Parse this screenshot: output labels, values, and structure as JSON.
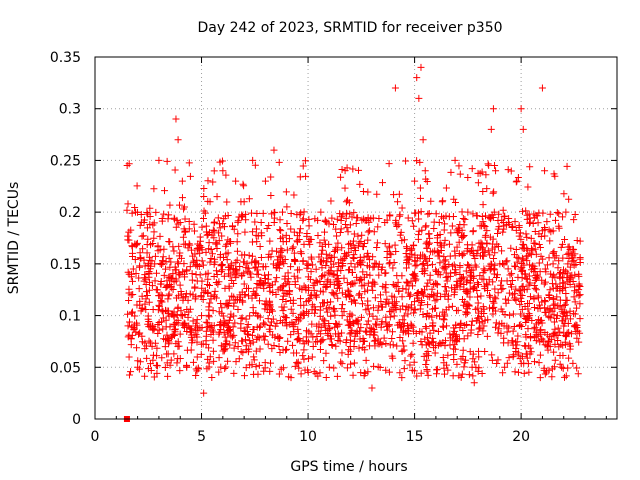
{
  "chart_data": {
    "type": "scatter",
    "title": "Day 242 of 2023, SRMTID for receiver p350",
    "xlabel": "GPS time / hours",
    "ylabel": "SRMTID / TECUs",
    "xlim": [
      0,
      24.5
    ],
    "ylim": [
      0,
      0.35
    ],
    "x_ticks": [
      0,
      5,
      10,
      15,
      20
    ],
    "x_tick_labels": [
      "0",
      "5",
      "10",
      "15",
      "20"
    ],
    "y_ticks": [
      0,
      0.05,
      0.1,
      0.15,
      0.2,
      0.25,
      0.3,
      0.35
    ],
    "y_tick_labels": [
      "0",
      "0.05",
      "0.1",
      "0.15",
      "0.2",
      "0.25",
      "0.3",
      "0.35"
    ],
    "grid": true,
    "marker": "plus",
    "marker_color": "#ff0000",
    "data_extent": {
      "x_start": 1.5,
      "x_end": 22.8
    },
    "square_marker": {
      "x": 1.5,
      "y": 0.0
    },
    "series": [
      {
        "name": "SRMTID",
        "points": [
          [
            1.55,
            0.09
          ],
          [
            1.6,
            0.06
          ],
          [
            1.7,
            0.12
          ],
          [
            1.8,
            0.145
          ],
          [
            1.9,
            0.2
          ],
          [
            2.0,
            0.05
          ],
          [
            2.1,
            0.11
          ],
          [
            2.2,
            0.08
          ],
          [
            2.3,
            0.19
          ],
          [
            2.4,
            0.13
          ],
          [
            2.6,
            0.09
          ],
          [
            2.8,
            0.15
          ],
          [
            3.0,
            0.25
          ],
          [
            3.1,
            0.12
          ],
          [
            3.3,
            0.07
          ],
          [
            3.5,
            0.13
          ],
          [
            3.7,
            0.1
          ],
          [
            3.8,
            0.29
          ],
          [
            3.9,
            0.27
          ],
          [
            4.0,
            0.19
          ],
          [
            4.1,
            0.23
          ],
          [
            4.2,
            0.14
          ],
          [
            4.4,
            0.09
          ],
          [
            4.6,
            0.12
          ],
          [
            4.8,
            0.06
          ],
          [
            5.0,
            0.1
          ],
          [
            5.1,
            0.025
          ],
          [
            5.2,
            0.14
          ],
          [
            5.4,
            0.21
          ],
          [
            5.6,
            0.12
          ],
          [
            5.8,
            0.18
          ],
          [
            6.0,
            0.24
          ],
          [
            6.2,
            0.09
          ],
          [
            6.4,
            0.15
          ],
          [
            6.6,
            0.23
          ],
          [
            6.8,
            0.12
          ],
          [
            7.0,
            0.21
          ],
          [
            7.2,
            0.065
          ],
          [
            7.4,
            0.25
          ],
          [
            7.6,
            0.14
          ],
          [
            7.8,
            0.19
          ],
          [
            8.0,
            0.23
          ],
          [
            8.2,
            0.11
          ],
          [
            8.4,
            0.26
          ],
          [
            8.6,
            0.15
          ],
          [
            8.8,
            0.2
          ],
          [
            9.0,
            0.09
          ],
          [
            9.2,
            0.04
          ],
          [
            9.4,
            0.13
          ],
          [
            9.6,
            0.18
          ],
          [
            9.8,
            0.11
          ],
          [
            10.0,
            0.15
          ],
          [
            10.2,
            0.06
          ],
          [
            10.4,
            0.12
          ],
          [
            10.6,
            0.2
          ],
          [
            10.8,
            0.09
          ],
          [
            11.0,
            0.05
          ],
          [
            11.2,
            0.14
          ],
          [
            11.4,
            0.17
          ],
          [
            11.6,
            0.1
          ],
          [
            11.8,
            0.21
          ],
          [
            12.0,
            0.13
          ],
          [
            12.2,
            0.08
          ],
          [
            12.4,
            0.17
          ],
          [
            12.6,
            0.22
          ],
          [
            12.8,
            0.11
          ],
          [
            13.0,
            0.03
          ],
          [
            13.2,
            0.15
          ],
          [
            13.4,
            0.12
          ],
          [
            13.6,
            0.19
          ],
          [
            13.8,
            0.09
          ],
          [
            14.0,
            0.13
          ],
          [
            14.1,
            0.32
          ],
          [
            14.2,
            0.21
          ],
          [
            14.4,
            0.04
          ],
          [
            14.6,
            0.16
          ],
          [
            14.8,
            0.12
          ],
          [
            15.0,
            0.23
          ],
          [
            15.1,
            0.33
          ],
          [
            15.2,
            0.31
          ],
          [
            15.3,
            0.34
          ],
          [
            15.4,
            0.27
          ],
          [
            15.5,
            0.24
          ],
          [
            15.7,
            0.17
          ],
          [
            15.9,
            0.12
          ],
          [
            16.1,
            0.14
          ],
          [
            16.3,
            0.21
          ],
          [
            16.5,
            0.09
          ],
          [
            16.7,
            0.18
          ],
          [
            16.9,
            0.25
          ],
          [
            17.1,
            0.16
          ],
          [
            17.3,
            0.11
          ],
          [
            17.5,
            0.2
          ],
          [
            17.7,
            0.05
          ],
          [
            17.8,
            0.035
          ],
          [
            18.0,
            0.13
          ],
          [
            18.2,
            0.22
          ],
          [
            18.4,
            0.17
          ],
          [
            18.6,
            0.28
          ],
          [
            18.7,
            0.3
          ],
          [
            18.8,
            0.24
          ],
          [
            19.0,
            0.15
          ],
          [
            19.2,
            0.09
          ],
          [
            19.4,
            0.19
          ],
          [
            19.6,
            0.12
          ],
          [
            19.8,
            0.23
          ],
          [
            20.0,
            0.3
          ],
          [
            20.1,
            0.28
          ],
          [
            20.2,
            0.14
          ],
          [
            20.4,
            0.1
          ],
          [
            20.6,
            0.17
          ],
          [
            20.8,
            0.08
          ],
          [
            20.9,
            0.04
          ],
          [
            21.0,
            0.32
          ],
          [
            21.1,
            0.24
          ],
          [
            21.3,
            0.12
          ],
          [
            21.5,
            0.15
          ],
          [
            21.7,
            0.1
          ],
          [
            21.9,
            0.05
          ],
          [
            22.1,
            0.2
          ],
          [
            22.3,
            0.13
          ],
          [
            22.5,
            0.09
          ],
          [
            22.7,
            0.14
          ]
        ]
      }
    ]
  }
}
